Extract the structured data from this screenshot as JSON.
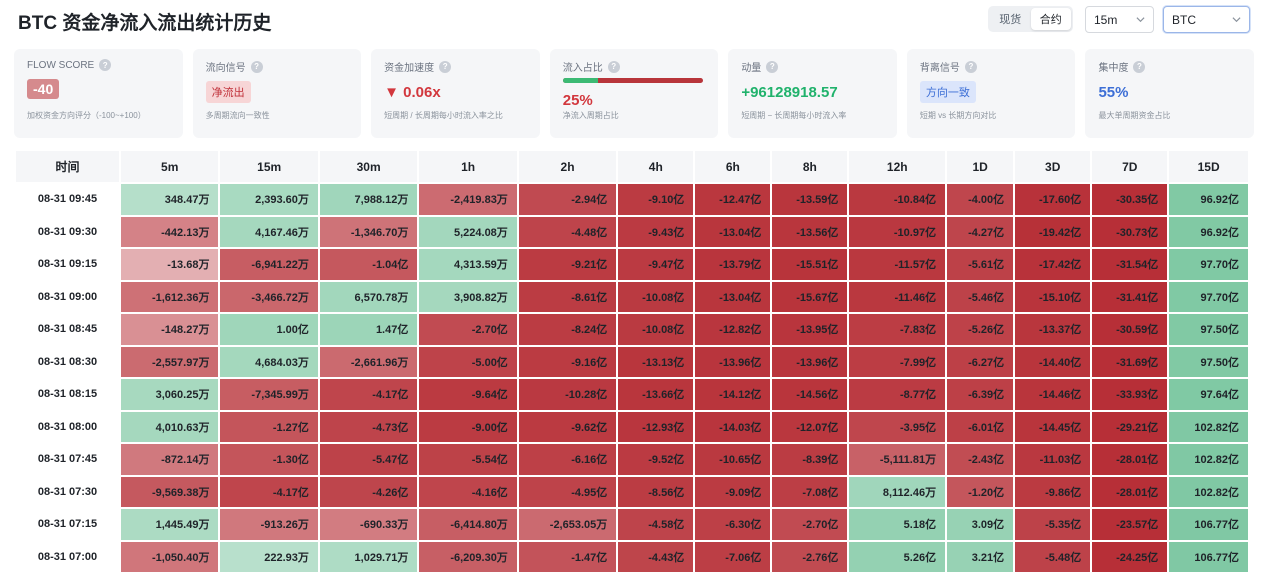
{
  "page": {
    "title": "BTC 资金净流入流出统计历史"
  },
  "controls": {
    "market_tabs": [
      "现货",
      "合约"
    ],
    "active_tab": "合约",
    "interval": "15m",
    "symbol": "BTC"
  },
  "cards": [
    {
      "id": "flow-score",
      "label": "FLOW SCORE",
      "value": "-40",
      "desc": "加权资金方向评分（-100~+100）",
      "style": "badge-red"
    },
    {
      "id": "flow-signal",
      "label": "流向信号",
      "value": "净流出",
      "desc": "多周期流向一致性",
      "style": "badge-pink"
    },
    {
      "id": "acceleration",
      "label": "资金加速度",
      "value": "▼ 0.06x",
      "desc": "短周期 / 长周期每小时流入率之比",
      "style": "v-red"
    },
    {
      "id": "inflow-ratio",
      "label": "流入占比",
      "value": "25%",
      "desc": "净流入周期占比",
      "style": "v-red",
      "progress": 0.25
    },
    {
      "id": "momentum",
      "label": "动量",
      "value": "+96128918.57",
      "desc": "短周期 − 长周期每小时流入率",
      "style": "v-green"
    },
    {
      "id": "divergence",
      "label": "背离信号",
      "value": "方向一致",
      "desc": "短期 vs 长期方向对比",
      "style": "badge-blue"
    },
    {
      "id": "concentration",
      "label": "集中度",
      "value": "55%",
      "desc": "最大单周期资金占比",
      "style": "v-blue"
    }
  ],
  "colors": {
    "positive": "#22a060",
    "negative": "#b3242c"
  },
  "table": {
    "headers": [
      "时间",
      "5m",
      "15m",
      "30m",
      "1h",
      "2h",
      "4h",
      "6h",
      "8h",
      "12h",
      "1D",
      "3D",
      "7D",
      "15D"
    ],
    "rows": [
      {
        "time": "08-31 09:45",
        "cells": [
          {
            "t": "348.47万",
            "v": 348.47
          },
          {
            "t": "2,393.60万",
            "v": 2393.6
          },
          {
            "t": "7,988.12万",
            "v": 7988.12
          },
          {
            "t": "-2,419.83万",
            "v": -2419.83
          },
          {
            "t": "-2.94亿",
            "v": -29400
          },
          {
            "t": "-9.10亿",
            "v": -91000
          },
          {
            "t": "-12.47亿",
            "v": -124700
          },
          {
            "t": "-13.59亿",
            "v": -135900
          },
          {
            "t": "-10.84亿",
            "v": -108400
          },
          {
            "t": "-4.00亿",
            "v": -40000
          },
          {
            "t": "-17.60亿",
            "v": -176000
          },
          {
            "t": "-30.35亿",
            "v": -303500
          },
          {
            "t": "96.92亿",
            "v": 969200
          }
        ]
      },
      {
        "time": "08-31 09:30",
        "cells": [
          {
            "t": "-442.13万",
            "v": -442.13
          },
          {
            "t": "4,167.46万",
            "v": 4167.46
          },
          {
            "t": "-1,346.70万",
            "v": -1346.7
          },
          {
            "t": "5,224.08万",
            "v": 5224.08
          },
          {
            "t": "-4.48亿",
            "v": -44800
          },
          {
            "t": "-9.43亿",
            "v": -94300
          },
          {
            "t": "-13.04亿",
            "v": -130400
          },
          {
            "t": "-13.56亿",
            "v": -135600
          },
          {
            "t": "-10.97亿",
            "v": -109700
          },
          {
            "t": "-4.27亿",
            "v": -42700
          },
          {
            "t": "-19.42亿",
            "v": -194200
          },
          {
            "t": "-30.73亿",
            "v": -307300
          },
          {
            "t": "96.92亿",
            "v": 969200
          }
        ]
      },
      {
        "time": "08-31 09:15",
        "cells": [
          {
            "t": "-13.68万",
            "v": -13.68
          },
          {
            "t": "-6,941.22万",
            "v": -6941.22
          },
          {
            "t": "-1.04亿",
            "v": -10400
          },
          {
            "t": "4,313.59万",
            "v": 4313.59
          },
          {
            "t": "-9.21亿",
            "v": -92100
          },
          {
            "t": "-9.47亿",
            "v": -94700
          },
          {
            "t": "-13.79亿",
            "v": -137900
          },
          {
            "t": "-15.51亿",
            "v": -155100
          },
          {
            "t": "-11.57亿",
            "v": -115700
          },
          {
            "t": "-5.61亿",
            "v": -56100
          },
          {
            "t": "-17.42亿",
            "v": -174200
          },
          {
            "t": "-31.54亿",
            "v": -315400
          },
          {
            "t": "97.70亿",
            "v": 977000
          }
        ]
      },
      {
        "time": "08-31 09:00",
        "cells": [
          {
            "t": "-1,612.36万",
            "v": -1612.36
          },
          {
            "t": "-3,466.72万",
            "v": -3466.72
          },
          {
            "t": "6,570.78万",
            "v": 6570.78
          },
          {
            "t": "3,908.82万",
            "v": 3908.82
          },
          {
            "t": "-8.61亿",
            "v": -86100
          },
          {
            "t": "-10.08亿",
            "v": -100800
          },
          {
            "t": "-13.04亿",
            "v": -130400
          },
          {
            "t": "-15.67亿",
            "v": -156700
          },
          {
            "t": "-11.46亿",
            "v": -114600
          },
          {
            "t": "-5.46亿",
            "v": -54600
          },
          {
            "t": "-15.10亿",
            "v": -151000
          },
          {
            "t": "-31.41亿",
            "v": -314100
          },
          {
            "t": "97.70亿",
            "v": 977000
          }
        ]
      },
      {
        "time": "08-31 08:45",
        "cells": [
          {
            "t": "-148.27万",
            "v": -148.27
          },
          {
            "t": "1.00亿",
            "v": 10000
          },
          {
            "t": "1.47亿",
            "v": 14700
          },
          {
            "t": "-2.70亿",
            "v": -27000
          },
          {
            "t": "-8.24亿",
            "v": -82400
          },
          {
            "t": "-10.08亿",
            "v": -100800
          },
          {
            "t": "-12.82亿",
            "v": -128200
          },
          {
            "t": "-13.95亿",
            "v": -139500
          },
          {
            "t": "-7.83亿",
            "v": -78300
          },
          {
            "t": "-5.26亿",
            "v": -52600
          },
          {
            "t": "-13.37亿",
            "v": -133700
          },
          {
            "t": "-30.59亿",
            "v": -305900
          },
          {
            "t": "97.50亿",
            "v": 975000
          }
        ]
      },
      {
        "time": "08-31 08:30",
        "cells": [
          {
            "t": "-2,557.97万",
            "v": -2557.97
          },
          {
            "t": "4,684.03万",
            "v": 4684.03
          },
          {
            "t": "-2,661.96万",
            "v": -2661.96
          },
          {
            "t": "-5.00亿",
            "v": -50000
          },
          {
            "t": "-9.16亿",
            "v": -91600
          },
          {
            "t": "-13.13亿",
            "v": -131300
          },
          {
            "t": "-13.96亿",
            "v": -139600
          },
          {
            "t": "-13.96亿",
            "v": -139600
          },
          {
            "t": "-7.99亿",
            "v": -79900
          },
          {
            "t": "-6.27亿",
            "v": -62700
          },
          {
            "t": "-14.40亿",
            "v": -144000
          },
          {
            "t": "-31.69亿",
            "v": -316900
          },
          {
            "t": "97.50亿",
            "v": 975000
          }
        ]
      },
      {
        "time": "08-31 08:15",
        "cells": [
          {
            "t": "3,060.25万",
            "v": 3060.25
          },
          {
            "t": "-7,345.99万",
            "v": -7345.99
          },
          {
            "t": "-4.17亿",
            "v": -41700
          },
          {
            "t": "-9.64亿",
            "v": -96400
          },
          {
            "t": "-10.28亿",
            "v": -102800
          },
          {
            "t": "-13.66亿",
            "v": -136600
          },
          {
            "t": "-14.12亿",
            "v": -141200
          },
          {
            "t": "-14.56亿",
            "v": -145600
          },
          {
            "t": "-8.77亿",
            "v": -87700
          },
          {
            "t": "-6.39亿",
            "v": -63900
          },
          {
            "t": "-14.46亿",
            "v": -144600
          },
          {
            "t": "-33.93亿",
            "v": -339300
          },
          {
            "t": "97.64亿",
            "v": 976400
          }
        ]
      },
      {
        "time": "08-31 08:00",
        "cells": [
          {
            "t": "4,010.63万",
            "v": 4010.63
          },
          {
            "t": "-1.27亿",
            "v": -12700
          },
          {
            "t": "-4.73亿",
            "v": -47300
          },
          {
            "t": "-9.00亿",
            "v": -90000
          },
          {
            "t": "-9.62亿",
            "v": -96200
          },
          {
            "t": "-12.93亿",
            "v": -129300
          },
          {
            "t": "-14.03亿",
            "v": -140300
          },
          {
            "t": "-12.07亿",
            "v": -120700
          },
          {
            "t": "-3.95亿",
            "v": -39500
          },
          {
            "t": "-6.01亿",
            "v": -60100
          },
          {
            "t": "-14.45亿",
            "v": -144500
          },
          {
            "t": "-29.21亿",
            "v": -292100
          },
          {
            "t": "102.82亿",
            "v": 1028200
          }
        ]
      },
      {
        "time": "08-31 07:45",
        "cells": [
          {
            "t": "-872.14万",
            "v": -872.14
          },
          {
            "t": "-1.30亿",
            "v": -13000
          },
          {
            "t": "-5.47亿",
            "v": -54700
          },
          {
            "t": "-5.54亿",
            "v": -55400
          },
          {
            "t": "-6.16亿",
            "v": -61600
          },
          {
            "t": "-9.52亿",
            "v": -95200
          },
          {
            "t": "-10.65亿",
            "v": -106500
          },
          {
            "t": "-8.39亿",
            "v": -83900
          },
          {
            "t": "-5,111.81万",
            "v": -5111.81
          },
          {
            "t": "-2.43亿",
            "v": -24300
          },
          {
            "t": "-11.03亿",
            "v": -110300
          },
          {
            "t": "-28.01亿",
            "v": -280100
          },
          {
            "t": "102.82亿",
            "v": 1028200
          }
        ]
      },
      {
        "time": "08-31 07:30",
        "cells": [
          {
            "t": "-9,569.38万",
            "v": -9569.38
          },
          {
            "t": "-4.17亿",
            "v": -41700
          },
          {
            "t": "-4.26亿",
            "v": -42600
          },
          {
            "t": "-4.16亿",
            "v": -41600
          },
          {
            "t": "-4.95亿",
            "v": -49500
          },
          {
            "t": "-8.56亿",
            "v": -85600
          },
          {
            "t": "-9.09亿",
            "v": -90900
          },
          {
            "t": "-7.08亿",
            "v": -70800
          },
          {
            "t": "8,112.46万",
            "v": 8112.46
          },
          {
            "t": "-1.20亿",
            "v": -12000
          },
          {
            "t": "-9.86亿",
            "v": -98600
          },
          {
            "t": "-28.01亿",
            "v": -280100
          },
          {
            "t": "102.82亿",
            "v": 1028200
          }
        ]
      },
      {
        "time": "08-31 07:15",
        "cells": [
          {
            "t": "1,445.49万",
            "v": 1445.49
          },
          {
            "t": "-913.26万",
            "v": -913.26
          },
          {
            "t": "-690.33万",
            "v": -690.33
          },
          {
            "t": "-6,414.80万",
            "v": -6414.8
          },
          {
            "t": "-2,653.05万",
            "v": -2653.05
          },
          {
            "t": "-4.58亿",
            "v": -45800
          },
          {
            "t": "-6.30亿",
            "v": -63000
          },
          {
            "t": "-2.70亿",
            "v": -27000
          },
          {
            "t": "5.18亿",
            "v": 51800
          },
          {
            "t": "3.09亿",
            "v": 30900
          },
          {
            "t": "-5.35亿",
            "v": -53500
          },
          {
            "t": "-23.57亿",
            "v": -235700
          },
          {
            "t": "106.77亿",
            "v": 1067700
          }
        ]
      },
      {
        "time": "08-31 07:00",
        "cells": [
          {
            "t": "-1,050.40万",
            "v": -1050.4
          },
          {
            "t": "222.93万",
            "v": 222.93
          },
          {
            "t": "1,029.71万",
            "v": 1029.71
          },
          {
            "t": "-6,209.30万",
            "v": -6209.3
          },
          {
            "t": "-1.47亿",
            "v": -14700
          },
          {
            "t": "-4.43亿",
            "v": -44300
          },
          {
            "t": "-7.06亿",
            "v": -70600
          },
          {
            "t": "-2.76亿",
            "v": -27600
          },
          {
            "t": "5.26亿",
            "v": 52600
          },
          {
            "t": "3.21亿",
            "v": 32100
          },
          {
            "t": "-5.48亿",
            "v": -54800
          },
          {
            "t": "-24.25亿",
            "v": -242500
          },
          {
            "t": "106.77亿",
            "v": 1067700
          }
        ]
      }
    ]
  }
}
